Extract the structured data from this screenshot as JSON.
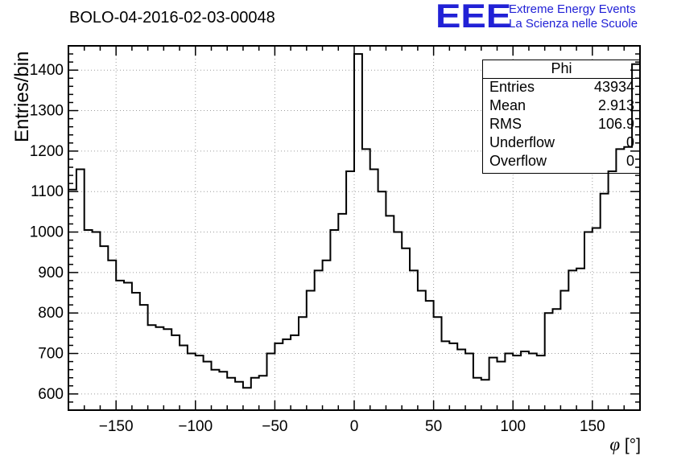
{
  "header": {
    "title": "BOLO-04-2016-02-03-00048",
    "logo": {
      "text": "EEE",
      "line1": "Extreme Energy Events",
      "line2": "La Scienza nelle Scuole",
      "color": "#2121d6"
    }
  },
  "stats_box": {
    "title": "Phi",
    "rows": [
      {
        "key": "Entries",
        "value": "43934"
      },
      {
        "key": "Mean",
        "value": "2.913"
      },
      {
        "key": "RMS",
        "value": "106.9"
      },
      {
        "key": "Underflow",
        "value": "0"
      },
      {
        "key": "Overflow",
        "value": "0"
      }
    ]
  },
  "chart_data": {
    "type": "bar",
    "subtype": "step-histogram",
    "title": "BOLO-04-2016-02-03-00048",
    "xlabel": "φ [°]",
    "xlabel_phi": "φ",
    "xlabel_unit": " [°]",
    "ylabel": "Entries/bin",
    "xlim": [
      -180,
      180
    ],
    "ylim": [
      560,
      1460
    ],
    "bin_start": -180,
    "bin_width": 5,
    "values": [
      1105,
      1155,
      1005,
      1000,
      965,
      930,
      880,
      875,
      850,
      820,
      770,
      765,
      760,
      745,
      720,
      700,
      695,
      680,
      660,
      655,
      640,
      630,
      615,
      640,
      645,
      700,
      725,
      735,
      745,
      790,
      855,
      905,
      930,
      1005,
      1045,
      1150,
      1440,
      1205,
      1155,
      1100,
      1040,
      1000,
      960,
      905,
      855,
      830,
      790,
      730,
      725,
      710,
      700,
      640,
      635,
      690,
      680,
      700,
      695,
      705,
      700,
      695,
      800,
      810,
      855,
      905,
      910,
      1000,
      1010,
      1095,
      1150,
      1205,
      1210,
      1415
    ],
    "x_ticks": [
      -150,
      -100,
      -50,
      0,
      50,
      100,
      150
    ],
    "x_tick_labels": [
      "−150",
      "−100",
      "−50",
      "0",
      "50",
      "100",
      "150"
    ],
    "y_ticks": [
      600,
      700,
      800,
      900,
      1000,
      1100,
      1200,
      1300,
      1400
    ],
    "x_minor_step": 10,
    "y_minor_step": 20,
    "grid": true,
    "grid_color": "#9c9c9c",
    "line_color": "#000000",
    "legend_position": "none"
  }
}
